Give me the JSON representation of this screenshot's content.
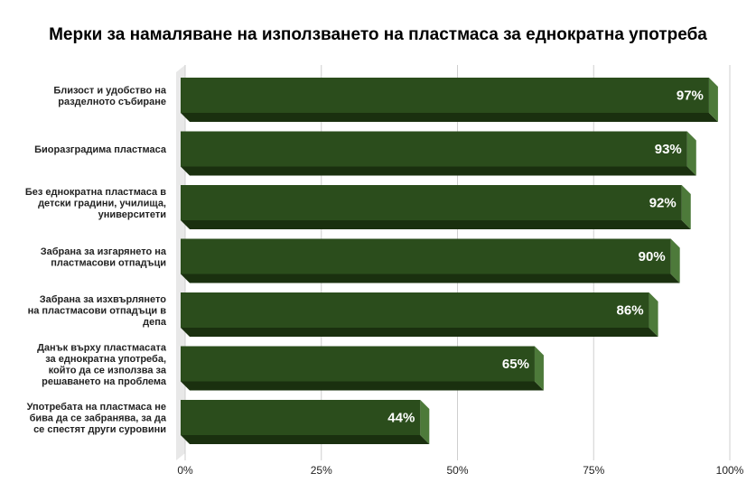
{
  "chart_data": {
    "type": "bar",
    "orientation": "horizontal",
    "style": "3d",
    "title": "Мерки за намаляване на използването на пластмаса за еднократна употреба",
    "categories": [
      [
        "Близост и удобство на",
        "разделното събиране"
      ],
      [
        "Биоразградима пластмаса"
      ],
      [
        "Без еднократна пластмаса в",
        "детски градини, училища,",
        "университети"
      ],
      [
        "Забрана за изгарянето на",
        "пластмасови отпадъци"
      ],
      [
        "Забрана за изхвърлянето",
        "на пластмасови отпадъци в",
        "депа"
      ],
      [
        "Данък върху пластмасата",
        "за еднократна употреба,",
        "който да се използва за",
        "решаването на проблема"
      ],
      [
        "Употребата на пластмаса не",
        "бива да се забранява, за да",
        "се спестят други суровини"
      ]
    ],
    "values": [
      97,
      93,
      92,
      90,
      86,
      65,
      44
    ],
    "value_labels": [
      "97%",
      "93%",
      "92%",
      "90%",
      "86%",
      "65%",
      "44%"
    ],
    "xlim": [
      0,
      100
    ],
    "xticks": [
      0,
      25,
      50,
      75,
      100
    ],
    "xtick_labels": [
      "0%",
      "25%",
      "50%",
      "75%",
      "100%"
    ],
    "grid": true,
    "legend": "none",
    "colors": {
      "bar_front": "#2b4d1c",
      "bar_side": "#4d7a3a",
      "bar_bottom": "#1a300f",
      "grid": "#cfcfcf",
      "wall": "#e8e8e8"
    }
  }
}
